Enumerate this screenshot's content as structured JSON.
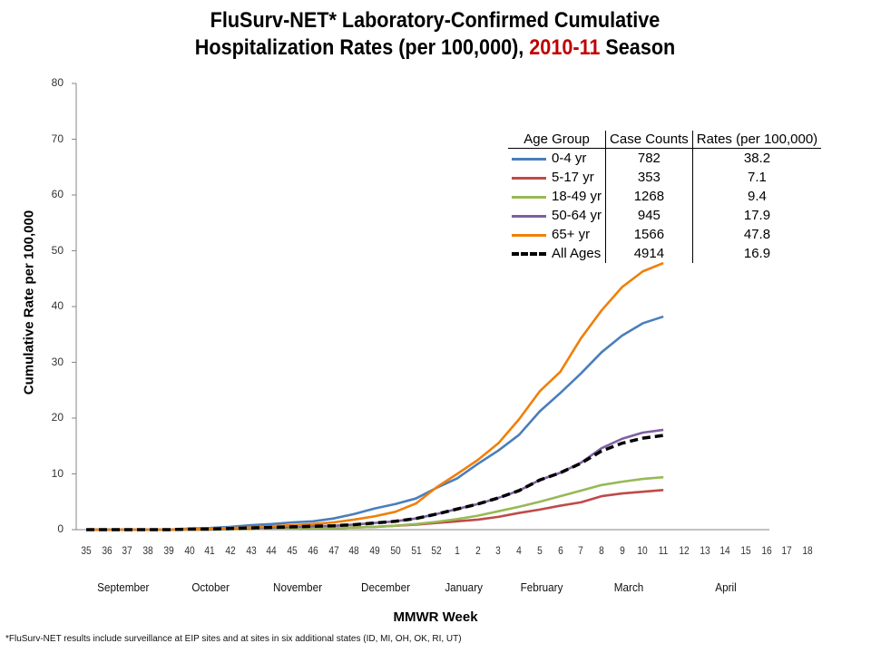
{
  "title": {
    "line1": "FluSurv-NET* Laboratory-Confirmed Cumulative",
    "line2_prefix": "Hospitalization Rates (per 100,000), ",
    "line2_highlight": "2010-11",
    "line2_suffix": " Season",
    "highlight_color": "#c00000"
  },
  "axes": {
    "ylabel": "Cumulative Rate per 100,000",
    "xlabel": "MMWR Week",
    "yticks": [
      "80",
      "70",
      "60",
      "50",
      "40",
      "30",
      "20",
      "10",
      "0"
    ],
    "xticks": [
      "35",
      "36",
      "37",
      "38",
      "39",
      "40",
      "41",
      "42",
      "43",
      "44",
      "45",
      "46",
      "47",
      "48",
      "49",
      "50",
      "51",
      "52",
      "1",
      "2",
      "3",
      "4",
      "5",
      "6",
      "7",
      "8",
      "9",
      "10",
      "11",
      "12",
      "13",
      "14",
      "15",
      "16",
      "17",
      "18"
    ],
    "months": [
      "September",
      "October",
      "November",
      "December",
      "January",
      "February",
      "March",
      "April"
    ]
  },
  "legend": {
    "headers": [
      "Age Group",
      "Case Counts",
      "Rates (per 100,000)"
    ],
    "rows": [
      {
        "label": "0-4 yr",
        "count": "782",
        "rate": "38.2",
        "color": "#4a7ebb"
      },
      {
        "label": "5-17 yr",
        "count": "353",
        "rate": "7.1",
        "color": "#be4b48"
      },
      {
        "label": "18-49 yr",
        "count": "1268",
        "rate": "9.4",
        "color": "#98b954"
      },
      {
        "label": "50-64 yr",
        "count": "945",
        "rate": "17.9",
        "color": "#7d60a0"
      },
      {
        "label": "65+ yr",
        "count": "1566",
        "rate": "47.8",
        "color": "#f07f09"
      },
      {
        "label": "All Ages",
        "count": "4914",
        "rate": "16.9",
        "color": "#000000"
      }
    ]
  },
  "footnote": "*FluSurv-NET results include surveillance at EIP sites and at sites in six additional states (ID, MI, OH, OK, RI, UT)",
  "chart_data": {
    "type": "line",
    "title": "FluSurv-NET* Laboratory-Confirmed Cumulative Hospitalization Rates (per 100,000), 2010-11 Season",
    "xlabel": "MMWR Week",
    "ylabel": "Cumulative Rate per 100,000",
    "ylim": [
      0,
      80
    ],
    "yticks": [
      0,
      10,
      20,
      30,
      40,
      50,
      60,
      70,
      80
    ],
    "grid": false,
    "legend_position": "upper right (table)",
    "x": [
      "35",
      "36",
      "37",
      "38",
      "39",
      "40",
      "41",
      "42",
      "43",
      "44",
      "45",
      "46",
      "47",
      "48",
      "49",
      "50",
      "51",
      "52",
      "1",
      "2",
      "3",
      "4",
      "5",
      "6",
      "7",
      "8",
      "9",
      "10",
      "11",
      "12",
      "13",
      "14",
      "15",
      "16",
      "17",
      "18"
    ],
    "series": [
      {
        "name": "0-4 yr",
        "color": "#4a7ebb",
        "values": [
          0,
          0,
          0,
          0,
          0,
          0.2,
          0.3,
          0.5,
          0.8,
          1.0,
          1.3,
          1.5,
          2.0,
          2.8,
          3.8,
          4.6,
          5.6,
          7.5,
          9.2,
          11.8,
          14.2,
          17.0,
          21.2,
          24.5,
          28.0,
          31.8,
          34.8,
          37.0,
          38.2
        ]
      },
      {
        "name": "5-17 yr",
        "color": "#be4b48",
        "values": [
          0,
          0,
          0,
          0,
          0,
          0,
          0,
          0.1,
          0.1,
          0.2,
          0.2,
          0.3,
          0.3,
          0.4,
          0.5,
          0.7,
          0.9,
          1.2,
          1.5,
          1.8,
          2.3,
          3.0,
          3.6,
          4.3,
          4.9,
          6.0,
          6.5,
          6.8,
          7.1
        ]
      },
      {
        "name": "18-49 yr",
        "color": "#98b954",
        "values": [
          0,
          0,
          0,
          0,
          0,
          0,
          0,
          0.1,
          0.1,
          0.2,
          0.2,
          0.3,
          0.3,
          0.4,
          0.5,
          0.7,
          1.0,
          1.4,
          1.9,
          2.5,
          3.3,
          4.1,
          5.0,
          6.0,
          7.0,
          8.0,
          8.6,
          9.1,
          9.4
        ]
      },
      {
        "name": "50-64 yr",
        "color": "#7d60a0",
        "values": [
          0,
          0,
          0,
          0,
          0,
          0.1,
          0.1,
          0.2,
          0.3,
          0.4,
          0.5,
          0.6,
          0.7,
          0.9,
          1.2,
          1.5,
          2.0,
          2.8,
          3.7,
          4.6,
          5.7,
          7.0,
          8.9,
          10.2,
          12.0,
          14.6,
          16.3,
          17.4,
          17.9
        ]
      },
      {
        "name": "65+ yr",
        "color": "#f07f09",
        "values": [
          0,
          0,
          0,
          0,
          0,
          0.1,
          0.2,
          0.3,
          0.4,
          0.6,
          0.8,
          1.0,
          1.3,
          1.8,
          2.4,
          3.2,
          4.7,
          7.6,
          10.0,
          12.5,
          15.5,
          19.8,
          24.8,
          28.3,
          34.3,
          39.3,
          43.5,
          46.3,
          47.8
        ]
      },
      {
        "name": "All Ages",
        "color": "#000000",
        "dashed": true,
        "values": [
          0,
          0,
          0,
          0,
          0,
          0.1,
          0.1,
          0.2,
          0.3,
          0.4,
          0.5,
          0.6,
          0.7,
          0.9,
          1.2,
          1.5,
          2.0,
          2.8,
          3.7,
          4.6,
          5.7,
          7.0,
          8.9,
          10.2,
          11.9,
          14.1,
          15.5,
          16.4,
          16.9
        ]
      }
    ]
  }
}
